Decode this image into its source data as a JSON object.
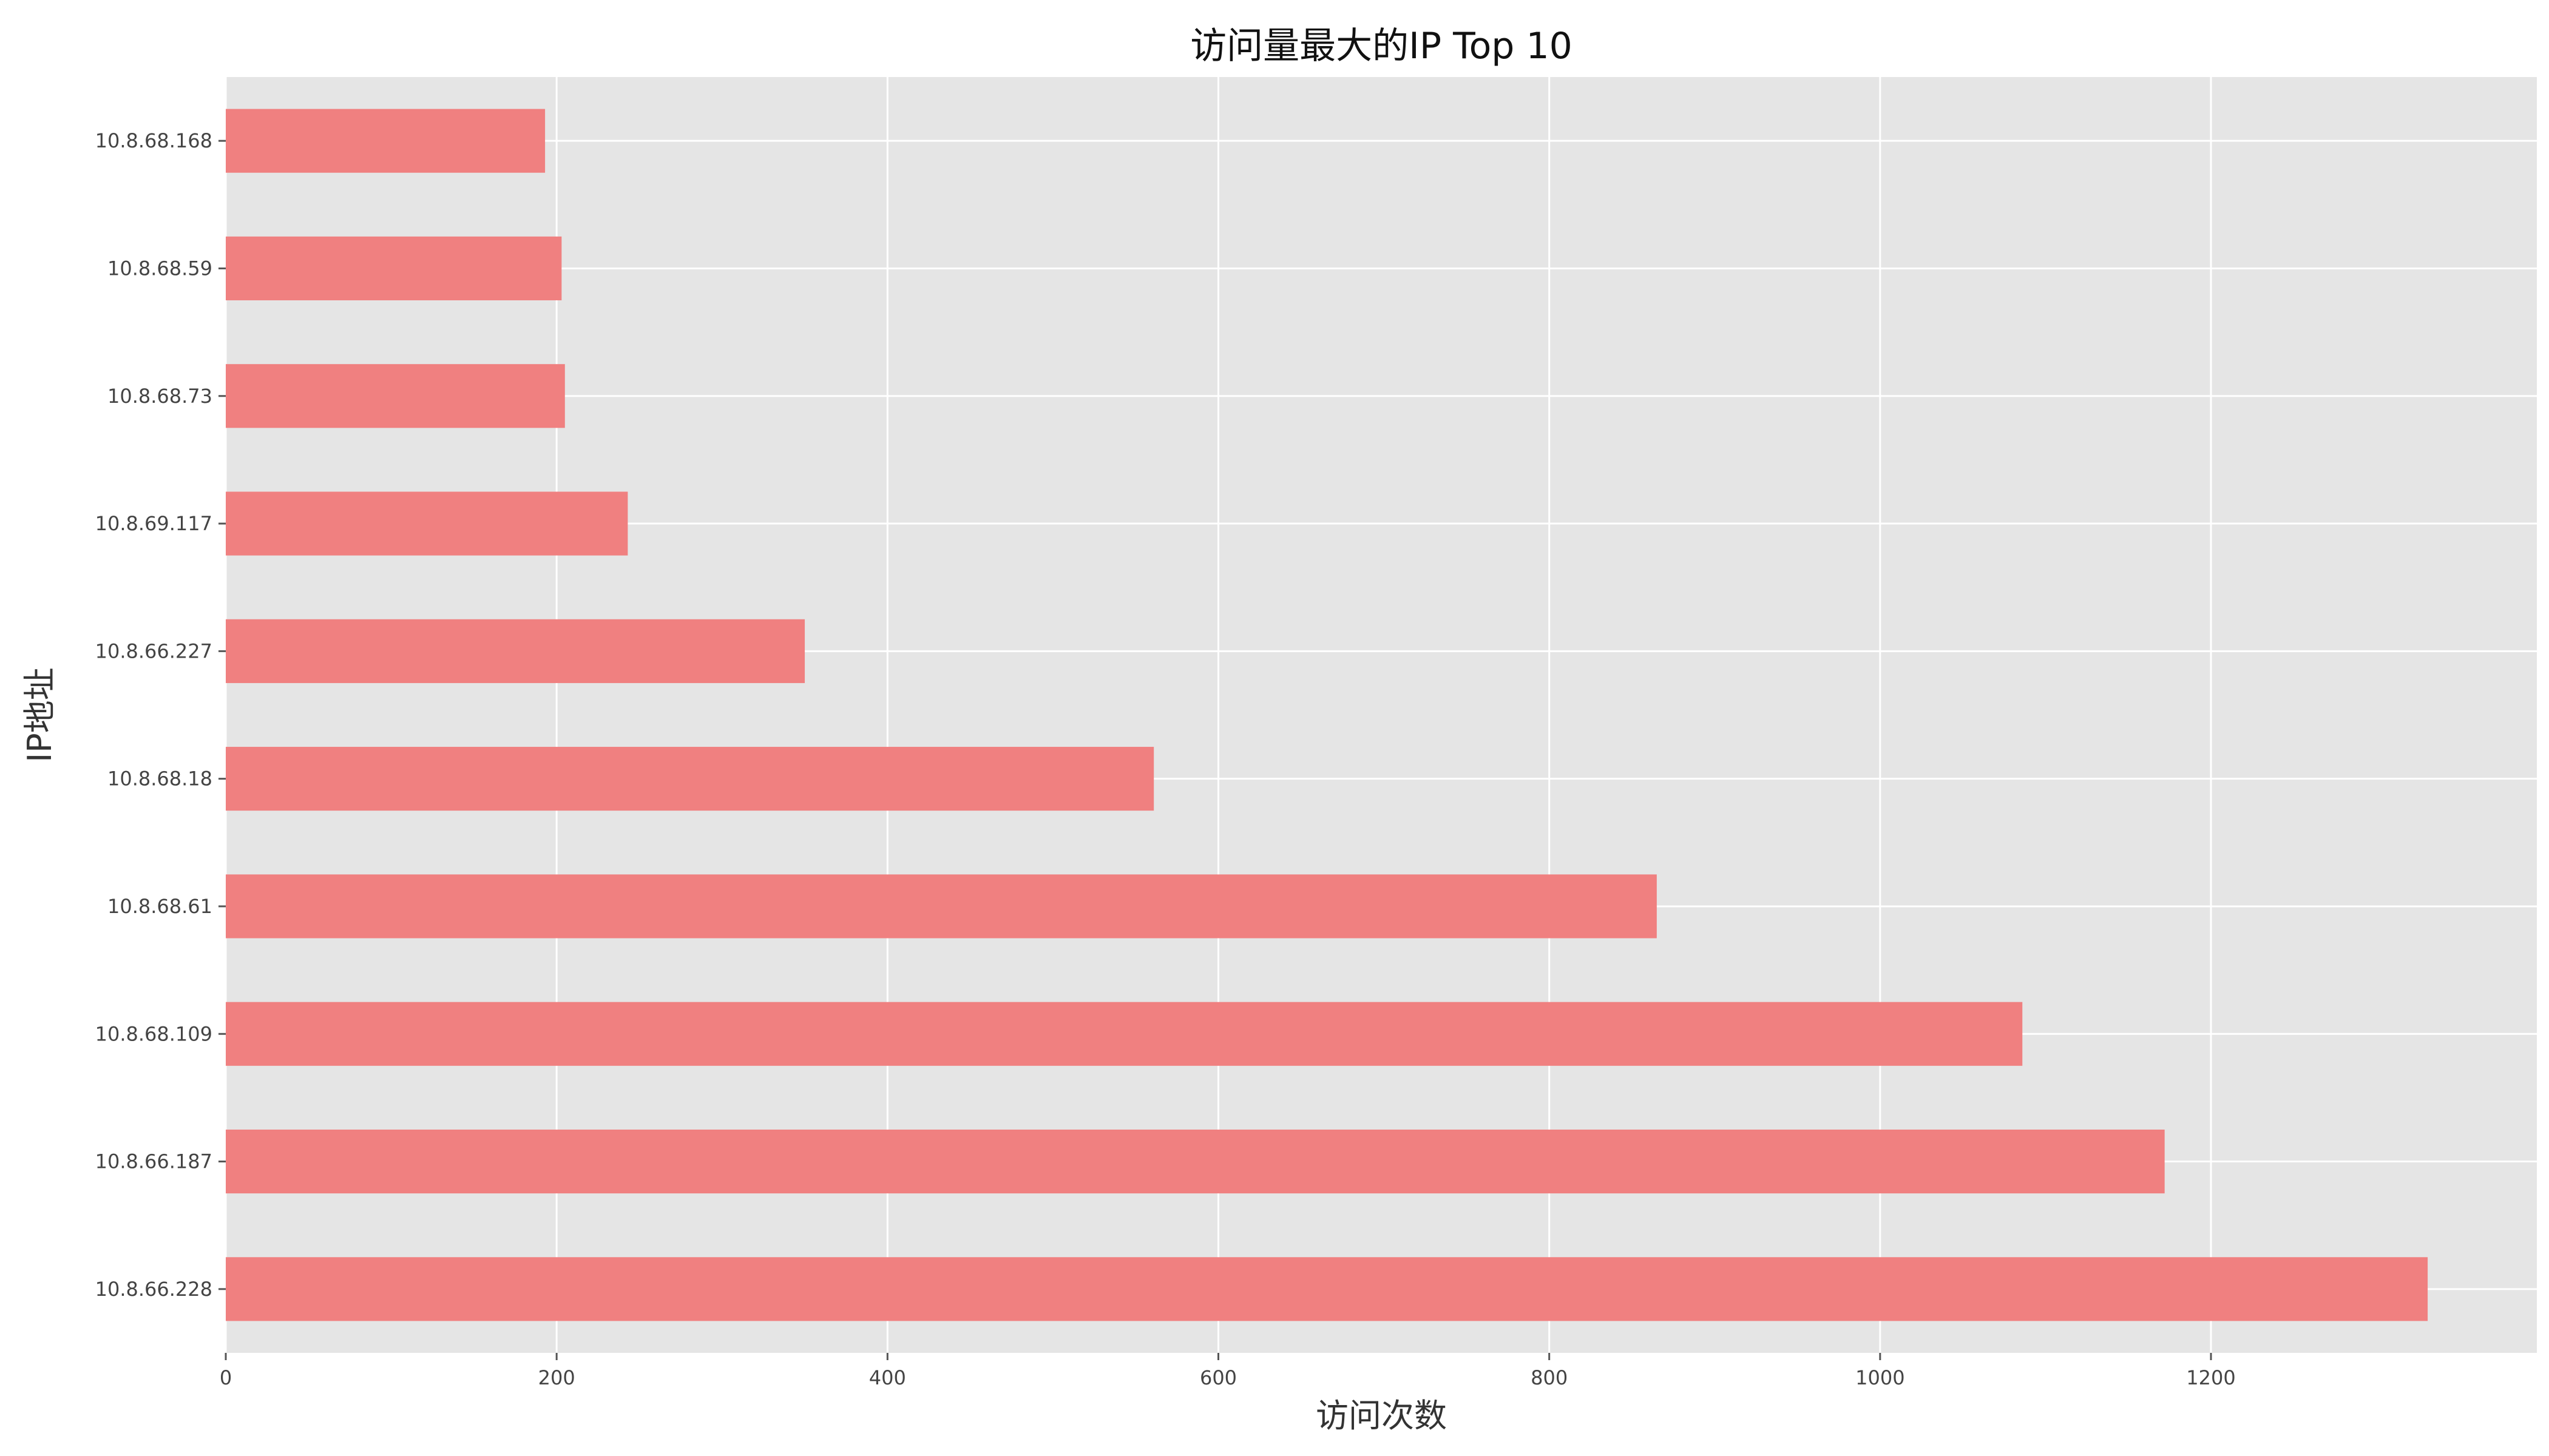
{
  "chart_data": {
    "type": "bar",
    "orientation": "horizontal",
    "title": "访问量最大的IP Top 10",
    "xlabel": "访问次数",
    "ylabel": "IP地址",
    "categories": [
      "10.8.66.228",
      "10.8.66.187",
      "10.8.68.109",
      "10.8.68.61",
      "10.8.68.18",
      "10.8.66.227",
      "10.8.69.117",
      "10.8.68.73",
      "10.8.68.59",
      "10.8.68.168"
    ],
    "values": [
      1331,
      1172,
      1086,
      865,
      561,
      350,
      243,
      205,
      203,
      193
    ],
    "xlim": [
      0,
      1397
    ],
    "xticks": [
      0,
      200,
      400,
      600,
      800,
      1000,
      1200
    ],
    "grid": true,
    "legend": "none",
    "colors": {
      "bar": "#f08080",
      "plot_background": "#e5e5e5",
      "grid": "#ffffff"
    }
  }
}
